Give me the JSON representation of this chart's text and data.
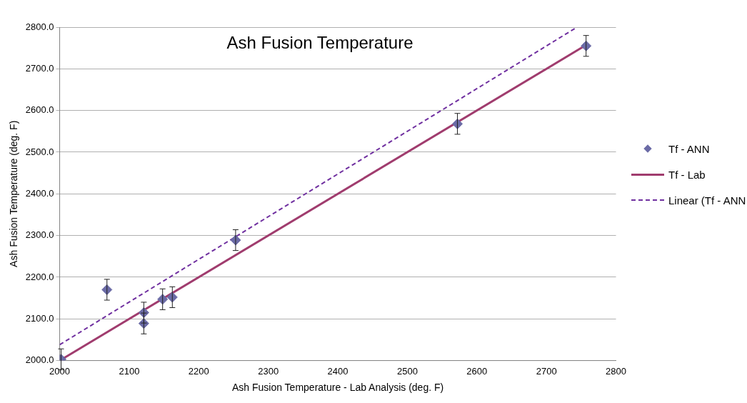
{
  "chart_data": {
    "type": "scatter",
    "title": "Ash Fusion Temperature",
    "xlabel": "Ash Fusion Temperature - Lab Analysis (deg. F)",
    "ylabel": "Ash Fusion Temperature (deg. F)",
    "series": [
      {
        "name": "Tf - ANN",
        "color": "#6b6ba6",
        "marker": "diamond",
        "x": [
          2002,
          2068,
          2121,
          2121,
          2148,
          2162,
          2253,
          2572,
          2757
        ],
        "values": [
          2003,
          2170,
          2115,
          2089,
          2147,
          2152,
          2289,
          2568,
          2755
        ],
        "errors": [
          25,
          25,
          25,
          25,
          25,
          25,
          25,
          25,
          25
        ]
      },
      {
        "name": "Tf - Lab",
        "type": "line",
        "color": "#a03c6e",
        "marker": "none",
        "line_style": "solid",
        "x": [
          2002,
          2757
        ],
        "values": [
          2002,
          2757
        ]
      },
      {
        "name": "Linear (Tf - ANN",
        "type": "line",
        "color": "#7030a0",
        "marker": "none",
        "line_style": "dashed",
        "x": [
          2000,
          2744
        ],
        "values": [
          2038,
          2800
        ]
      }
    ],
    "xlim": [
      2000,
      2800
    ],
    "xticks": [
      2000,
      2100,
      2200,
      2300,
      2400,
      2500,
      2600,
      2700,
      2800
    ],
    "ylim": [
      2000,
      2800
    ],
    "yticks": [
      {
        "value": 2000,
        "label": "2000.0"
      },
      {
        "value": 2100,
        "label": "2100.0"
      },
      {
        "value": 2200,
        "label": "2200.0"
      },
      {
        "value": 2300,
        "label": "2300.0"
      },
      {
        "value": 2400,
        "label": "2400.0"
      },
      {
        "value": 2500,
        "label": "2500.0"
      },
      {
        "value": 2600,
        "label": "2600.0"
      },
      {
        "value": 2700,
        "label": "2700.0"
      },
      {
        "value": 2800,
        "label": "2800.0"
      }
    ],
    "grid": "y",
    "legend": "right"
  }
}
